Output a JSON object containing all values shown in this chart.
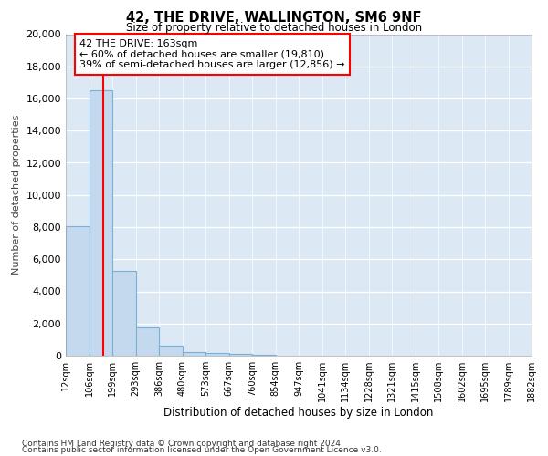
{
  "title": "42, THE DRIVE, WALLINGTON, SM6 9NF",
  "subtitle": "Size of property relative to detached houses in London",
  "xlabel": "Distribution of detached houses by size in London",
  "ylabel": "Number of detached properties",
  "footnote1": "Contains HM Land Registry data © Crown copyright and database right 2024.",
  "footnote2": "Contains public sector information licensed under the Open Government Licence v3.0.",
  "annotation_title": "42 THE DRIVE: 163sqm",
  "annotation_line1": "← 60% of detached houses are smaller (19,810)",
  "annotation_line2": "39% of semi-detached houses are larger (12,856) →",
  "property_size": 163,
  "bar_color": "#c5d9ee",
  "bar_edge_color": "#7bafd4",
  "vline_color": "red",
  "background_color": "#ffffff",
  "plot_bg_color": "#dce9f5",
  "bins": [
    12,
    106,
    199,
    293,
    386,
    480,
    573,
    667,
    760,
    854,
    947,
    1041,
    1134,
    1228,
    1321,
    1415,
    1508,
    1602,
    1695,
    1789,
    1882
  ],
  "bin_labels": [
    "12sqm",
    "106sqm",
    "199sqm",
    "293sqm",
    "386sqm",
    "480sqm",
    "573sqm",
    "667sqm",
    "760sqm",
    "854sqm",
    "947sqm",
    "1041sqm",
    "1134sqm",
    "1228sqm",
    "1321sqm",
    "1415sqm",
    "1508sqm",
    "1602sqm",
    "1695sqm",
    "1789sqm",
    "1882sqm"
  ],
  "counts": [
    8050,
    16500,
    5300,
    1750,
    600,
    250,
    150,
    100,
    60,
    0,
    0,
    0,
    0,
    0,
    0,
    0,
    0,
    0,
    0,
    0,
    0
  ],
  "ylim": [
    0,
    20000
  ],
  "yticks": [
    0,
    2000,
    4000,
    6000,
    8000,
    10000,
    12000,
    14000,
    16000,
    18000,
    20000
  ]
}
